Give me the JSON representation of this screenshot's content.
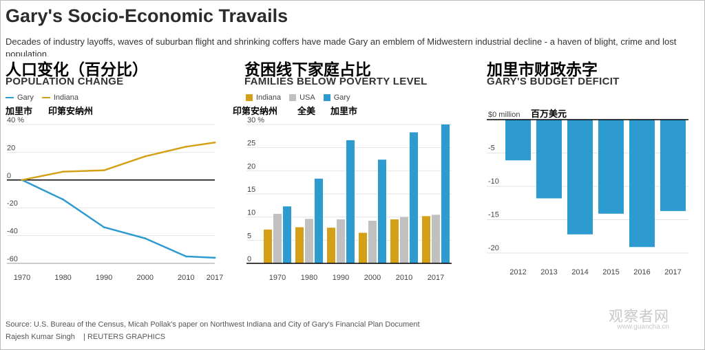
{
  "header": {
    "title": "Gary's Socio-Economic Travails",
    "subtitle": "Decades of industry layoffs, waves of suburban flight and shrinking coffers have made Gary an emblem of Midwestern industrial decline - a haven of blight, crime and lost population."
  },
  "colors": {
    "gary": "#2e9bd0",
    "indiana": "#d4a017",
    "usa": "#c0c0c0"
  },
  "panels": {
    "population": {
      "zh_title": "人口变化（百分比）",
      "en_title": "POPULATION CHANGE",
      "legend": {
        "gary": "Gary",
        "indiana": "Indiana"
      },
      "zh_legend": {
        "gary": "加里市",
        "indiana": "印第安纳州"
      }
    },
    "poverty": {
      "zh_title": "贫困线下家庭占比",
      "en_title": "FAMILIES BELOW POVERTY LEVEL",
      "legend": {
        "indiana": "Indiana",
        "usa": "USA",
        "gary": "Gary"
      },
      "zh_legend": {
        "indiana": "印第安纳州",
        "usa": "全美",
        "gary": "加里市"
      }
    },
    "budget": {
      "zh_title": "加里市财政赤字",
      "en_title": "GARY'S BUDGET DEFICIT",
      "zh_unit": "百万美元"
    }
  },
  "chart_data": [
    {
      "type": "line",
      "title": "POPULATION CHANGE",
      "x": [
        1970,
        1980,
        1990,
        2000,
        2010,
        2017
      ],
      "tick_labels": [
        "1970",
        "1980",
        "1990",
        "2000",
        "2010",
        "2017"
      ],
      "y_tick_labels": [
        "40 %",
        "20",
        "0",
        "-20",
        "-40",
        "-60"
      ],
      "y_ticks": [
        40,
        20,
        0,
        -20,
        -40,
        -60
      ],
      "ylim": [
        -60,
        40
      ],
      "series": [
        {
          "name": "Gary",
          "color": "#2e9bd0",
          "values": [
            0,
            -14,
            -34,
            -42,
            -55,
            -56
          ]
        },
        {
          "name": "Indiana",
          "color": "#d4a017",
          "values": [
            0,
            6,
            7,
            17,
            24,
            27
          ]
        }
      ]
    },
    {
      "type": "bar",
      "title": "FAMILIES BELOW POVERTY LEVEL",
      "categories": [
        "1970",
        "1980",
        "1990",
        "2000",
        "2010",
        "2017"
      ],
      "y_tick_labels": [
        "30 %",
        "25",
        "20",
        "15",
        "10",
        "5",
        "0"
      ],
      "y_ticks": [
        30,
        25,
        20,
        15,
        10,
        5,
        0
      ],
      "ylim": [
        0,
        30
      ],
      "series": [
        {
          "name": "Indiana",
          "color": "#d4a017",
          "values": [
            7.3,
            7.8,
            7.7,
            6.6,
            9.5,
            10.2
          ]
        },
        {
          "name": "USA",
          "color": "#c0c0c0",
          "values": [
            10.7,
            9.6,
            9.5,
            9.2,
            10.0,
            10.5
          ]
        },
        {
          "name": "Gary",
          "color": "#2e9bd0",
          "values": [
            12.3,
            18.3,
            26.6,
            22.4,
            28.3,
            30.0
          ]
        }
      ]
    },
    {
      "type": "bar",
      "title": "GARY'S BUDGET DEFICIT",
      "categories": [
        "2012",
        "2013",
        "2014",
        "2015",
        "2016",
        "2017"
      ],
      "y_tick_labels": [
        "$0 million",
        "-5",
        "-10",
        "-15",
        "-20"
      ],
      "y_ticks": [
        0,
        -5,
        -10,
        -15,
        -20
      ],
      "ylim": [
        -20,
        0
      ],
      "series": [
        {
          "name": "Gary",
          "color": "#2e9bd0",
          "values": [
            -6.1,
            -11.8,
            -17.2,
            -14.1,
            -19.1,
            -13.7
          ]
        }
      ]
    }
  ],
  "footer": {
    "source": "Source: U.S. Bureau of the Census, Micah Pollak's paper on Northwest Indiana and City of Gary's Financial Plan Document",
    "credit": "Rajesh Kumar Singh    | REUTERS GRAPHICS"
  },
  "watermark": {
    "text": "观察者网",
    "url": "www.guancha.cn"
  }
}
